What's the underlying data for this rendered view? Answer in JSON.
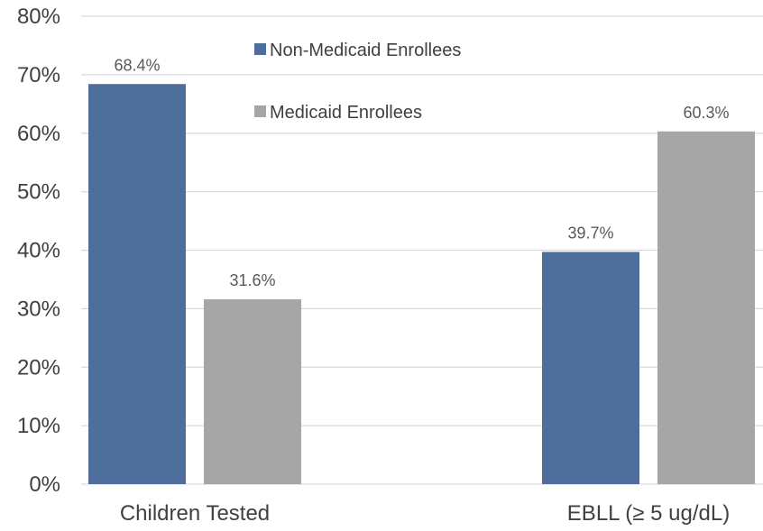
{
  "chart_data": {
    "type": "bar",
    "categories": [
      "Children Tested",
      "EBLL (≥ 5 ug/dL)"
    ],
    "series": [
      {
        "name": "Non-Medicaid Enrollees",
        "values": [
          68.4,
          39.7
        ],
        "color": "#4E6F9B"
      },
      {
        "name": "Medicaid Enrollees",
        "values": [
          31.6,
          60.3
        ],
        "color": "#A6A6A6"
      }
    ],
    "data_labels": [
      [
        "68.4%",
        "39.7%"
      ],
      [
        "31.6%",
        "60.3%"
      ]
    ],
    "y_ticks": [
      "0%",
      "10%",
      "20%",
      "30%",
      "40%",
      "50%",
      "60%",
      "70%",
      "80%"
    ],
    "y_tick_values": [
      0,
      10,
      20,
      30,
      40,
      50,
      60,
      70,
      80
    ],
    "ylim": [
      0,
      80
    ],
    "grid": true,
    "legend_position": "top-center",
    "colors": {
      "gridline": "#D9D9D9",
      "axis_text": "#404040",
      "label_text": "#595959"
    }
  }
}
